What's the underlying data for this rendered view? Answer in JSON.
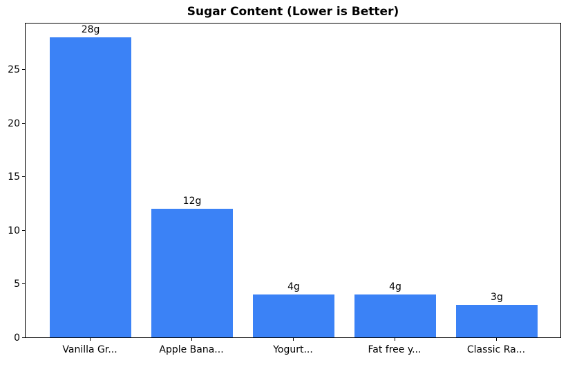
{
  "chart_data": {
    "type": "bar",
    "title": "Sugar Content (Lower is Better)",
    "categories": [
      "Vanilla Gr...",
      "Apple Bana...",
      "Yogurt...",
      "Fat free y...",
      "Classic Ra..."
    ],
    "values": [
      28,
      12,
      4,
      4,
      3
    ],
    "bar_labels": [
      "28g",
      "12g",
      "4g",
      "4g",
      "3g"
    ],
    "xlabel": "",
    "ylabel": "",
    "yticks": [
      0,
      5,
      10,
      15,
      20,
      25
    ],
    "ylim": [
      0,
      29.4
    ],
    "grid": false,
    "legend_position": "none",
    "bar_color": "#3b82f6",
    "axis_color": "#000000",
    "text_color": "#000000",
    "background_color": "#ffffff"
  }
}
